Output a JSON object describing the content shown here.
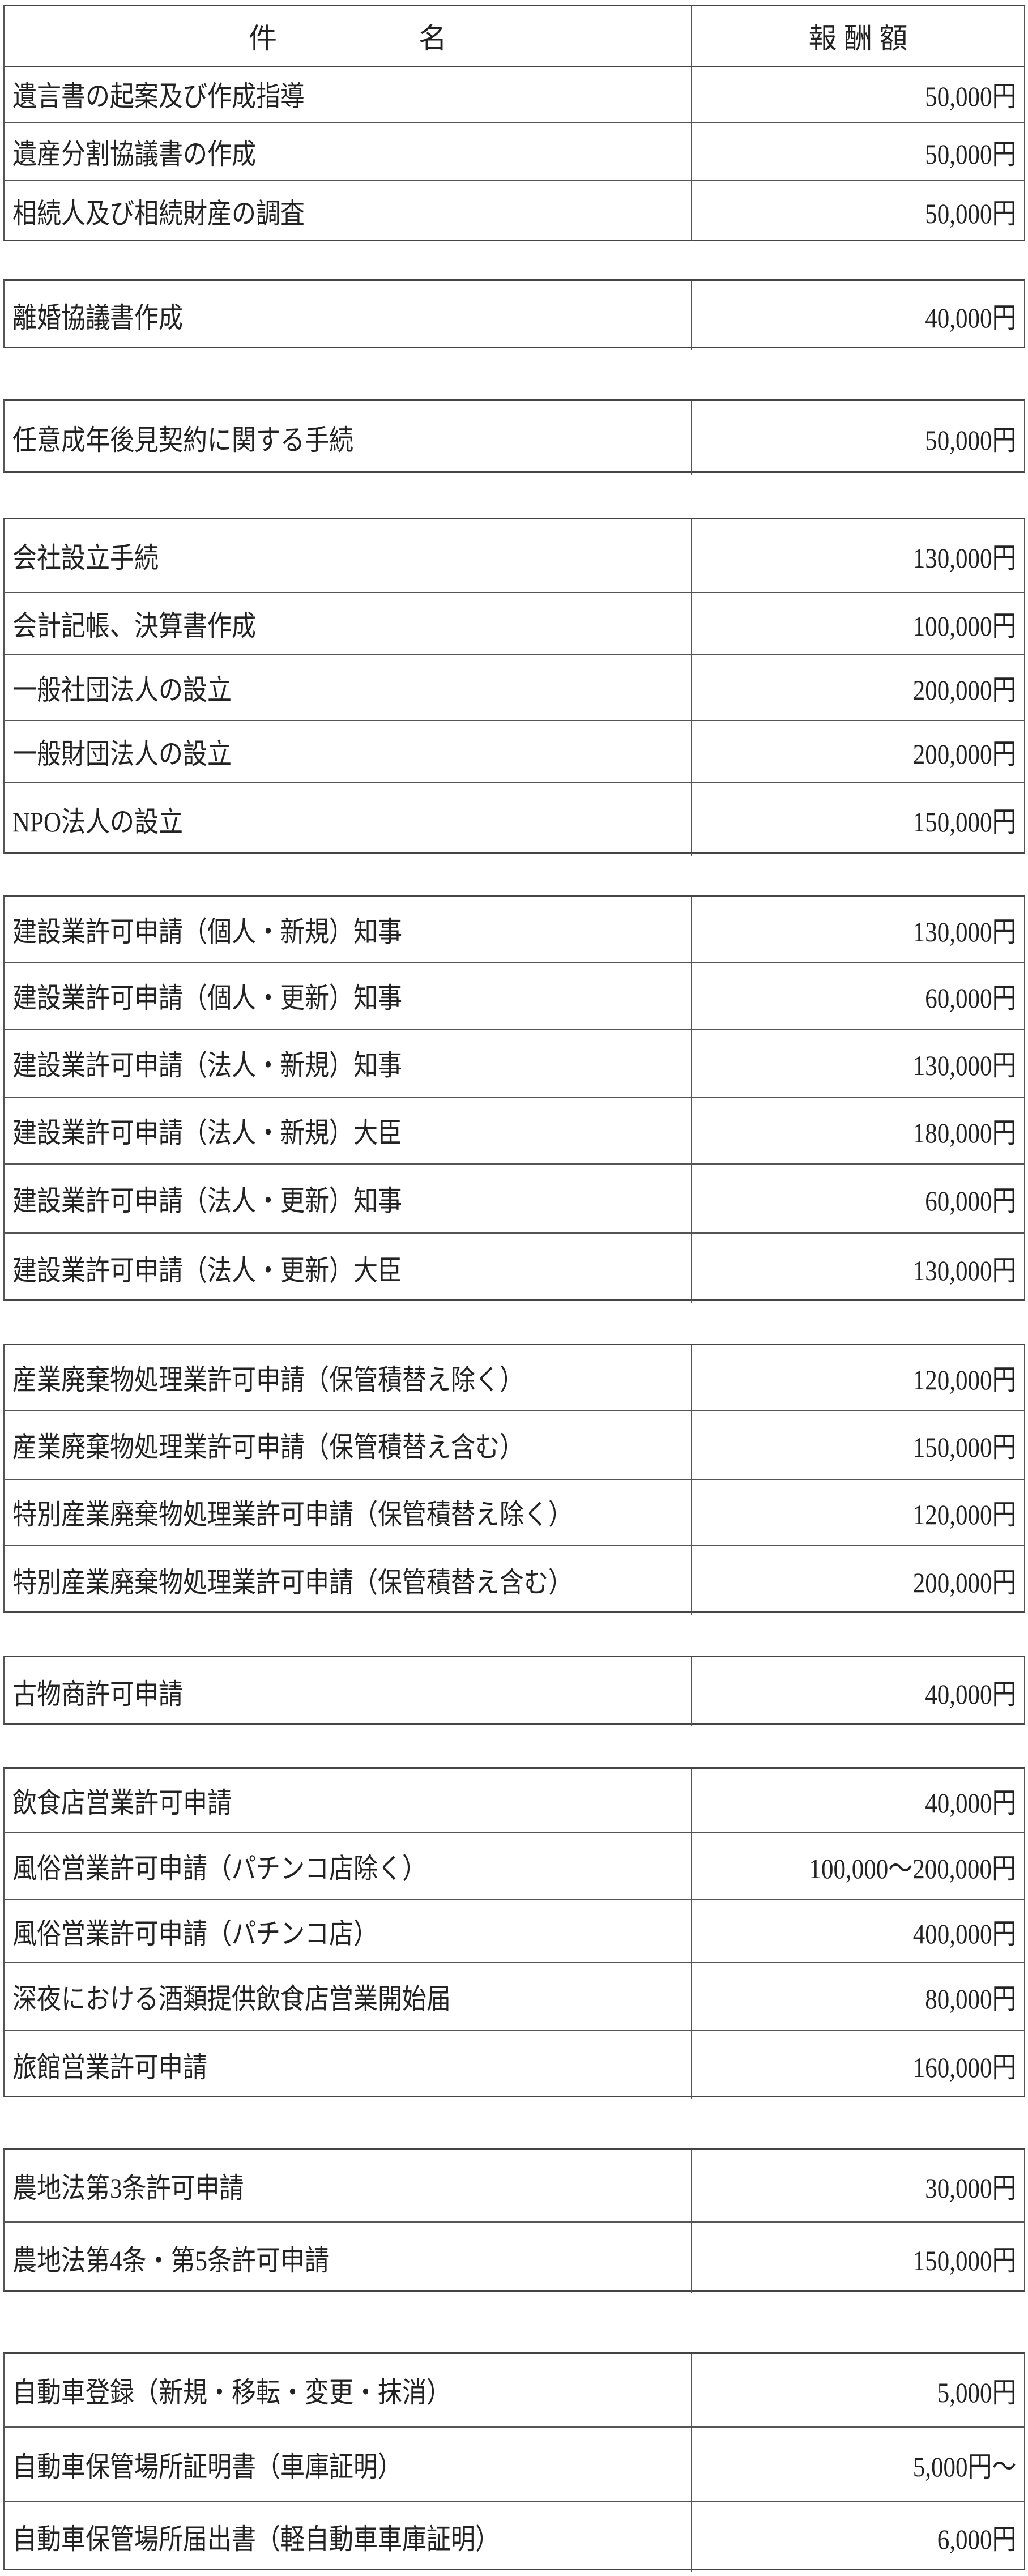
{
  "header": {
    "name": "件　　　　　名",
    "fee": "報 酬 額"
  },
  "groups": [
    [
      [
        "遺言書の起案及び作成指導",
        "50,000円"
      ],
      [
        "遺産分割協議書の作成",
        "50,000円"
      ],
      [
        "相続人及び相続財産の調査",
        "50,000円"
      ]
    ],
    [
      [
        "離婚協議書作成",
        "40,000円"
      ]
    ],
    [
      [
        "任意成年後見契約に関する手続",
        "50,000円"
      ]
    ],
    [
      [
        "会社設立手続",
        "130,000円"
      ],
      [
        "会計記帳、決算書作成",
        "100,000円"
      ],
      [
        "一般社団法人の設立",
        "200,000円"
      ],
      [
        "一般財団法人の設立",
        "200,000円"
      ],
      [
        "NPO法人の設立",
        "150,000円"
      ]
    ],
    [
      [
        "建設業許可申請（個人・新規）知事",
        "130,000円"
      ],
      [
        "建設業許可申請（個人・更新）知事",
        "60,000円"
      ],
      [
        "建設業許可申請（法人・新規）知事",
        "130,000円"
      ],
      [
        "建設業許可申請（法人・新規）大臣",
        "180,000円"
      ],
      [
        "建設業許可申請（法人・更新）知事",
        "60,000円"
      ],
      [
        "建設業許可申請（法人・更新）大臣",
        "130,000円"
      ]
    ],
    [
      [
        "産業廃棄物処理業許可申請（保管積替え除く）",
        "120,000円"
      ],
      [
        "産業廃棄物処理業許可申請（保管積替え含む）",
        "150,000円"
      ],
      [
        "特別産業廃棄物処理業許可申請（保管積替え除く）",
        "120,000円"
      ],
      [
        "特別産業廃棄物処理業許可申請（保管積替え含む）",
        "200,000円"
      ]
    ],
    [
      [
        "古物商許可申請",
        "40,000円"
      ]
    ],
    [
      [
        "飲食店営業許可申請",
        "40,000円"
      ],
      [
        "風俗営業許可申請（パチンコ店除く）",
        "100,000～200,000円"
      ],
      [
        "風俗営業許可申請（パチンコ店）",
        "400,000円"
      ],
      [
        "深夜における酒類提供飲食店営業開始届",
        "80,000円"
      ],
      [
        "旅館営業許可申請",
        "160,000円"
      ]
    ],
    [
      [
        "農地法第3条許可申請",
        "30,000円"
      ],
      [
        "農地法第4条・第5条許可申請",
        "150,000円"
      ]
    ],
    [
      [
        "自動車登録（新規・移転・変更・抹消）",
        "5,000円"
      ],
      [
        "自動車保管場所証明書（車庫証明）",
        "5,000円～"
      ],
      [
        "自動車保管場所届出書（軽自動車車庫証明）",
        "6,000円"
      ]
    ]
  ]
}
